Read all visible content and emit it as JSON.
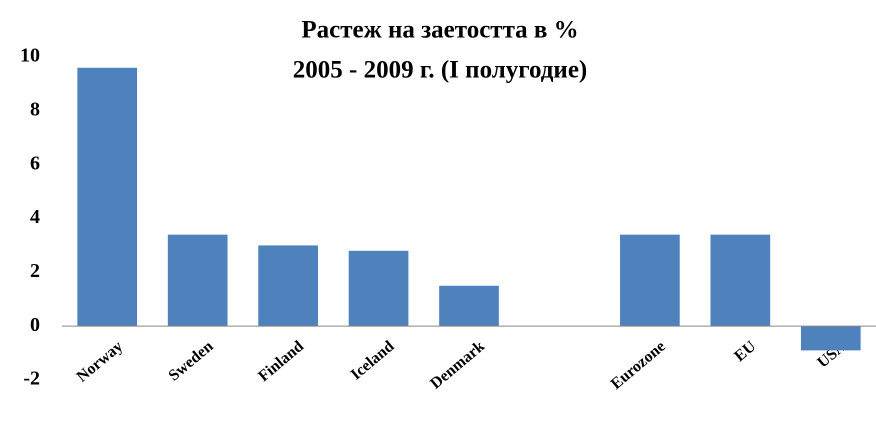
{
  "chart_data": {
    "type": "bar",
    "title": [
      "Растеж на заетостта в %",
      "2005 - 2009 г. (I полугодие)"
    ],
    "categories": [
      "Norway",
      "Sweden",
      "Finland",
      "Iceland",
      "Denmark",
      null,
      "Eurozone",
      "EU",
      "USA"
    ],
    "values": [
      9.6,
      3.4,
      3.0,
      2.8,
      1.5,
      null,
      3.4,
      3.4,
      -0.9
    ],
    "color": "#4f81bd",
    "ylim": [
      -2,
      10
    ],
    "yticks": [
      -2,
      0,
      2,
      4,
      6,
      8,
      10
    ],
    "grid": false
  }
}
